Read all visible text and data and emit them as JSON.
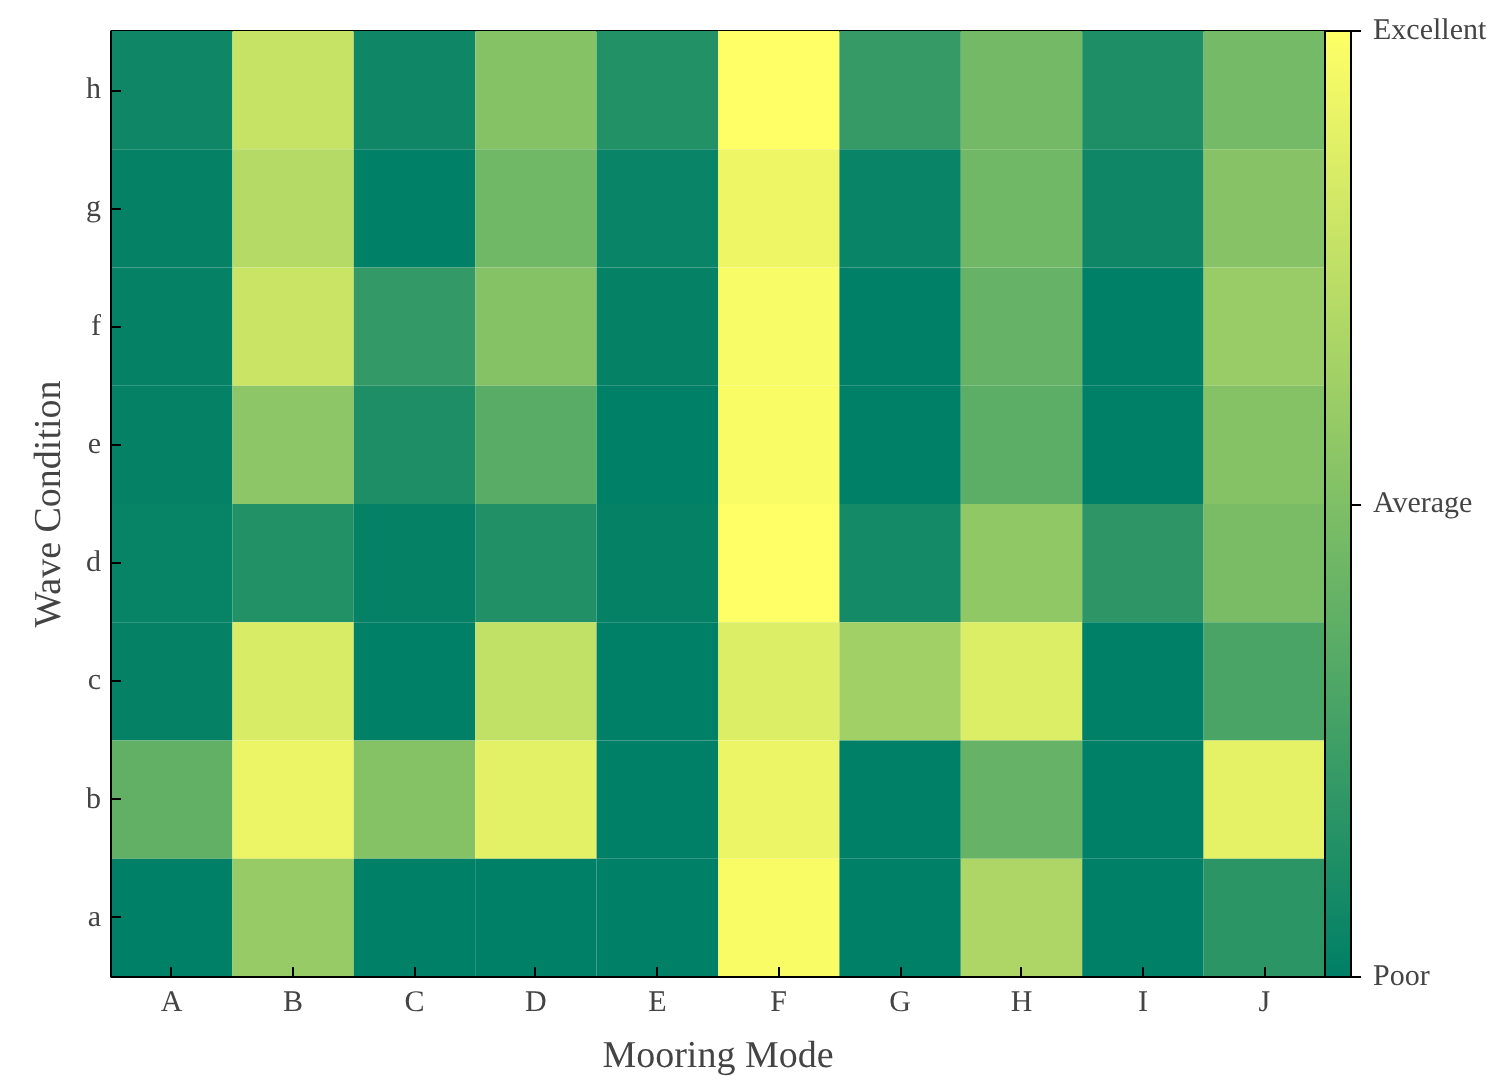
{
  "chart_data": {
    "type": "heatmap",
    "xlabel": "Mooring Mode",
    "ylabel": "Wave Condition",
    "categories": [
      "A",
      "B",
      "C",
      "D",
      "E",
      "F",
      "G",
      "H",
      "I",
      "J"
    ],
    "y_categories": [
      "h",
      "g",
      "f",
      "e",
      "d",
      "c",
      "b",
      "a"
    ],
    "cells": [
      [
        0.06,
        0.78,
        0.06,
        0.52,
        0.14,
        1.0,
        0.21,
        0.45,
        0.12,
        0.46
      ],
      [
        0.02,
        0.71,
        0.0,
        0.44,
        0.04,
        0.93,
        0.04,
        0.44,
        0.06,
        0.53
      ],
      [
        0.02,
        0.79,
        0.2,
        0.52,
        0.02,
        0.97,
        0.0,
        0.4,
        0.0,
        0.6
      ],
      [
        0.02,
        0.55,
        0.12,
        0.35,
        0.0,
        0.98,
        0.0,
        0.36,
        0.0,
        0.52
      ],
      [
        0.03,
        0.14,
        0.02,
        0.13,
        0.02,
        1.0,
        0.08,
        0.57,
        0.18,
        0.48
      ],
      [
        0.02,
        0.85,
        0.0,
        0.75,
        0.0,
        0.86,
        0.63,
        0.86,
        0.0,
        0.29
      ],
      [
        0.38,
        0.92,
        0.52,
        0.89,
        0.0,
        0.92,
        0.0,
        0.4,
        0.0,
        0.9
      ],
      [
        0.0,
        0.59,
        0.0,
        0.0,
        0.0,
        0.98,
        0.0,
        0.68,
        0.0,
        0.17
      ]
    ],
    "clim": [
      0,
      1
    ],
    "cticks": [
      {
        "value": 0,
        "label": "Poor"
      },
      {
        "value": 0.5,
        "label": "Average"
      },
      {
        "value": 1,
        "label": "Excellent"
      }
    ]
  }
}
